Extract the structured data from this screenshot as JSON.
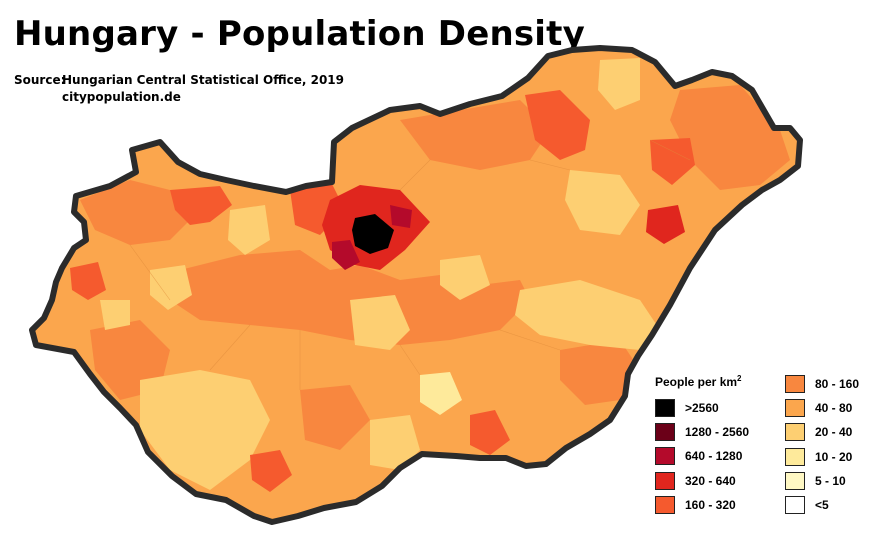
{
  "title": "Hungary - Population Density",
  "source": {
    "label": "Source:",
    "line1": "Hungarian Central Statistical Office, 2019",
    "line2": "citypopulation.de"
  },
  "legend": {
    "title": "People per km",
    "title_sup": "2",
    "left_items": [
      {
        "label": ">2560",
        "color": "#000000"
      },
      {
        "label": "1280 - 2560",
        "color": "#6b0018"
      },
      {
        "label": "640 - 1280",
        "color": "#b40a2b"
      },
      {
        "label": "320 - 640",
        "color": "#e0261e"
      },
      {
        "label": "160 - 320",
        "color": "#f55a2e"
      }
    ],
    "right_items": [
      {
        "label": "80 - 160",
        "color": "#f8873f"
      },
      {
        "label": "40 - 80",
        "color": "#fba64d"
      },
      {
        "label": "20 - 40",
        "color": "#fdcf72"
      },
      {
        "label": "10 - 20",
        "color": "#feea9b"
      },
      {
        "label": "5 - 10",
        "color": "#fff8c4"
      },
      {
        "label": "<5",
        "color": "#ffffff"
      }
    ]
  }
}
